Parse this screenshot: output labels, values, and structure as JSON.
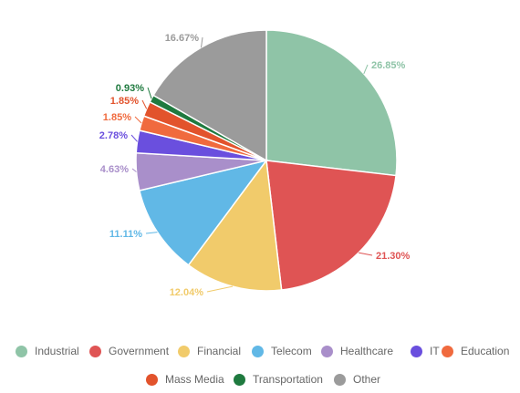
{
  "chart_data": {
    "type": "pie",
    "title": "",
    "slices": [
      {
        "name": "Industrial",
        "value": 26.85,
        "label": "26.85%",
        "color": "#8fc4a7"
      },
      {
        "name": "Government",
        "value": 21.3,
        "label": "21.30%",
        "color": "#df5454"
      },
      {
        "name": "Financial",
        "value": 12.04,
        "label": "12.04%",
        "color": "#f1cb6b"
      },
      {
        "name": "Telecom",
        "value": 11.11,
        "label": "11.11%",
        "color": "#61b8e6"
      },
      {
        "name": "Healthcare",
        "value": 4.63,
        "label": "4.63%",
        "color": "#a98fca"
      },
      {
        "name": "IT",
        "value": 2.78,
        "label": "2.78%",
        "color": "#6a4fde"
      },
      {
        "name": "Education",
        "value": 1.85,
        "label": "1.85%",
        "color": "#f06a3e"
      },
      {
        "name": "Mass Media",
        "value": 1.85,
        "label": "1.85%",
        "color": "#e2532c"
      },
      {
        "name": "Transportation",
        "value": 0.93,
        "label": "0.93%",
        "color": "#1f7a3f"
      },
      {
        "name": "Other",
        "value": 16.67,
        "label": "16.67%",
        "color": "#9b9b9b"
      }
    ],
    "legend_position": "bottom"
  }
}
